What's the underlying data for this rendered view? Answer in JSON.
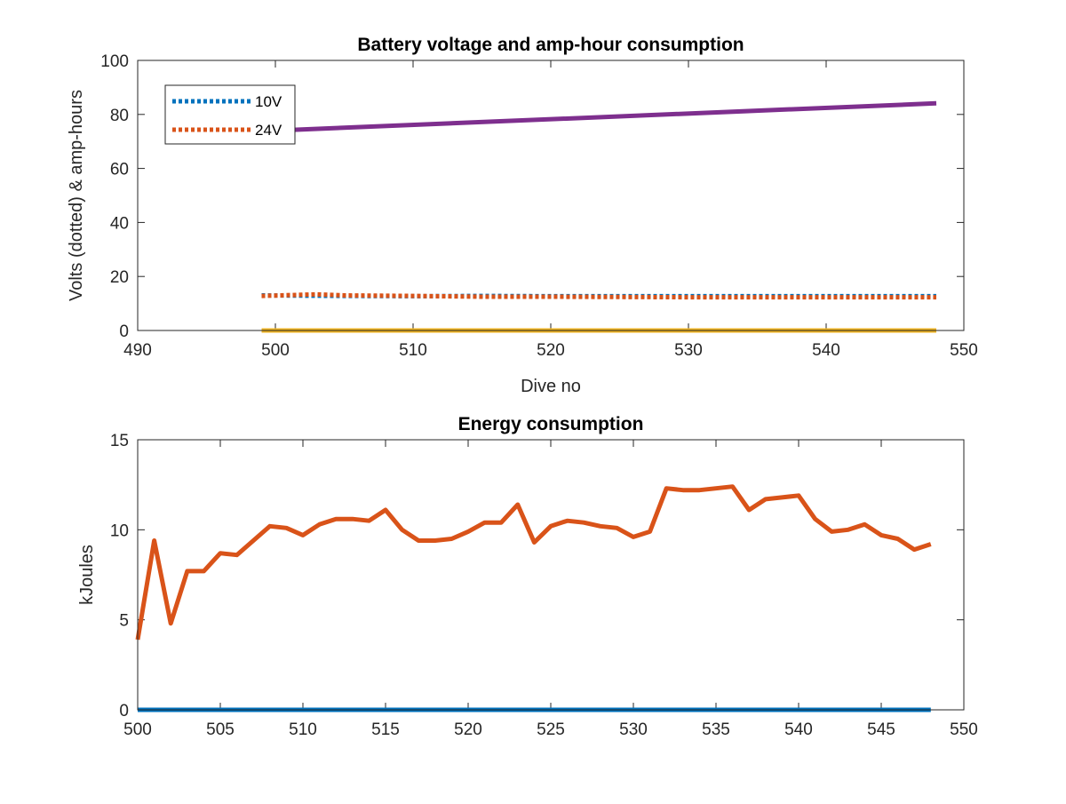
{
  "figure": {
    "background": "#ffffff",
    "axes_color": "#262626"
  },
  "chart_data": [
    {
      "type": "line",
      "title": "Battery voltage and amp-hour consumption",
      "xlabel": "Dive no",
      "ylabel": "Volts (dotted) & amp-hours",
      "xlim": [
        490,
        550
      ],
      "ylim": [
        0,
        100
      ],
      "xticks": [
        "490",
        "500",
        "510",
        "520",
        "530",
        "540",
        "550"
      ],
      "yticks": [
        "0",
        "20",
        "40",
        "60",
        "80",
        "100"
      ],
      "grid": false,
      "legend": {
        "position": "top-left",
        "entries": [
          "10V",
          "24V"
        ]
      },
      "series": [
        {
          "name": "10V",
          "style": "dotted",
          "color": "#0072BD",
          "x": [
            499,
            505,
            510,
            515,
            520,
            525,
            530,
            535,
            540,
            545,
            548
          ],
          "y": [
            13.0,
            12.8,
            12.7,
            12.8,
            12.7,
            12.7,
            12.7,
            12.7,
            12.7,
            12.7,
            12.7
          ]
        },
        {
          "name": "24V",
          "style": "dotted",
          "color": "#D95319",
          "x": [
            499,
            503,
            505,
            510,
            515,
            520,
            525,
            530,
            535,
            540,
            545,
            548
          ],
          "y": [
            12.8,
            13.4,
            13.0,
            12.8,
            12.5,
            12.5,
            12.4,
            12.3,
            12.3,
            12.3,
            12.3,
            12.3
          ]
        },
        {
          "style": "solid",
          "color": "#EDB120",
          "x": [
            499,
            548
          ],
          "y": [
            0,
            0
          ]
        },
        {
          "style": "solid",
          "color": "#7E2F8E",
          "x": [
            499,
            548
          ],
          "y": [
            73.8,
            84.1
          ]
        }
      ]
    },
    {
      "type": "line",
      "title": "Energy consumption",
      "xlabel": "",
      "ylabel": "kJoules",
      "xlim": [
        500,
        550
      ],
      "ylim": [
        0,
        15
      ],
      "xticks": [
        "500",
        "505",
        "510",
        "515",
        "520",
        "525",
        "530",
        "535",
        "540",
        "545",
        "550"
      ],
      "yticks": [
        "0",
        "5",
        "10",
        "15"
      ],
      "grid": false,
      "series": [
        {
          "style": "solid",
          "color": "#0072BD",
          "x": [
            500,
            548
          ],
          "y": [
            0,
            0
          ]
        },
        {
          "style": "solid",
          "color": "#D95319",
          "x": [
            500,
            501,
            502,
            503,
            504,
            505,
            506,
            507,
            508,
            509,
            510,
            511,
            512,
            513,
            514,
            515,
            516,
            517,
            518,
            519,
            520,
            521,
            522,
            523,
            524,
            525,
            526,
            527,
            528,
            529,
            530,
            531,
            532,
            533,
            534,
            535,
            536,
            537,
            538,
            539,
            540,
            541,
            542,
            543,
            544,
            545,
            546,
            547,
            548
          ],
          "y": [
            3.9,
            9.4,
            4.8,
            7.7,
            7.7,
            8.7,
            8.6,
            9.4,
            10.2,
            10.1,
            9.7,
            10.3,
            10.6,
            10.6,
            10.5,
            11.1,
            10.0,
            9.4,
            9.4,
            9.5,
            9.9,
            10.4,
            10.4,
            11.4,
            9.3,
            10.2,
            10.5,
            10.4,
            10.2,
            10.1,
            9.6,
            9.9,
            12.3,
            12.2,
            12.2,
            12.3,
            12.4,
            11.1,
            11.7,
            11.8,
            11.9,
            10.6,
            9.9,
            10.0,
            10.3,
            9.7,
            9.5,
            8.9,
            9.2
          ]
        }
      ]
    }
  ]
}
